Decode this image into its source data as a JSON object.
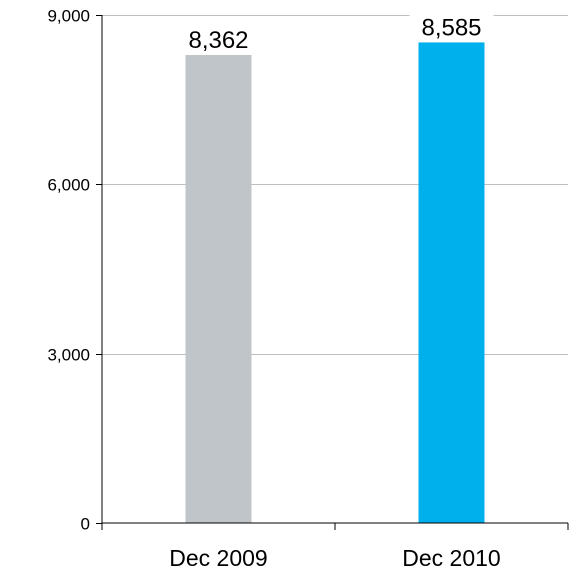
{
  "chart_data": {
    "type": "bar",
    "categories": [
      "Dec 2009",
      "Dec 2010"
    ],
    "values": [
      8362,
      8585
    ],
    "value_labels": [
      "8,362",
      "8,585"
    ],
    "bar_colors": [
      "#bfc5c8",
      "#00b0ec"
    ],
    "ylim": [
      0,
      9000
    ],
    "y_ticks": [
      0,
      3000,
      6000,
      9000
    ],
    "y_tick_labels": [
      "0",
      "3,000",
      "6,000",
      "9,000"
    ],
    "grid": true,
    "gridline_color": "#bfbfbf",
    "title": "",
    "xlabel": "",
    "ylabel": ""
  }
}
